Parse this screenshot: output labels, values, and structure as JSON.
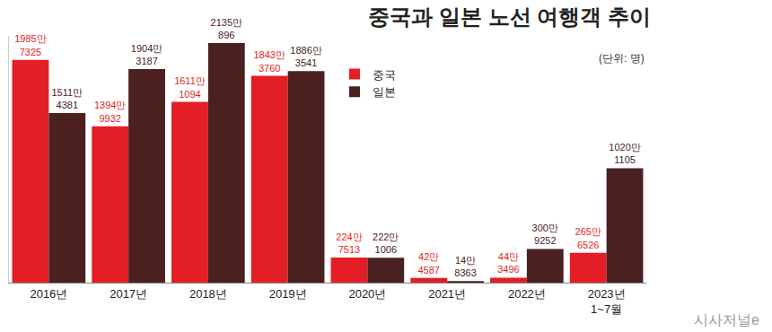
{
  "chart_data": {
    "type": "bar",
    "title": "중국과 일본 노선 여행객 추이",
    "annotations": [
      "(단위: 명)",
      "시사저널e"
    ],
    "categories": [
      "2016년",
      "2017년",
      "2018년",
      "2019년",
      "2020년",
      "2021년",
      "2022년",
      "2023년 1~7월"
    ],
    "series": [
      {
        "name": "중국",
        "color": "#e31e24",
        "values": [
          19857325,
          13949932,
          16111094,
          18433760,
          2247513,
          424587,
          443496,
          2656526
        ],
        "value_labels": [
          "1985만 7325",
          "1394만 9932",
          "1611만 1094",
          "1843만 3760",
          "224만 7513",
          "42만 4587",
          "44만 3496",
          "265만 6526"
        ]
      },
      {
        "name": "일본",
        "color": "#4a2020",
        "values": [
          15114381,
          19043187,
          21350896,
          18863541,
          2221006,
          148363,
          3009252,
          10201105
        ],
        "value_labels": [
          "1511만 4381",
          "1904만 3187",
          "2135만 896",
          "1886만 3541",
          "222만 1006",
          "14만 8363",
          "300만 9252",
          "1020만 1105"
        ]
      }
    ],
    "ylim": [
      0,
      22000000
    ],
    "grid": false,
    "legend": "top",
    "data_labels": true,
    "tick_labels": "x"
  }
}
